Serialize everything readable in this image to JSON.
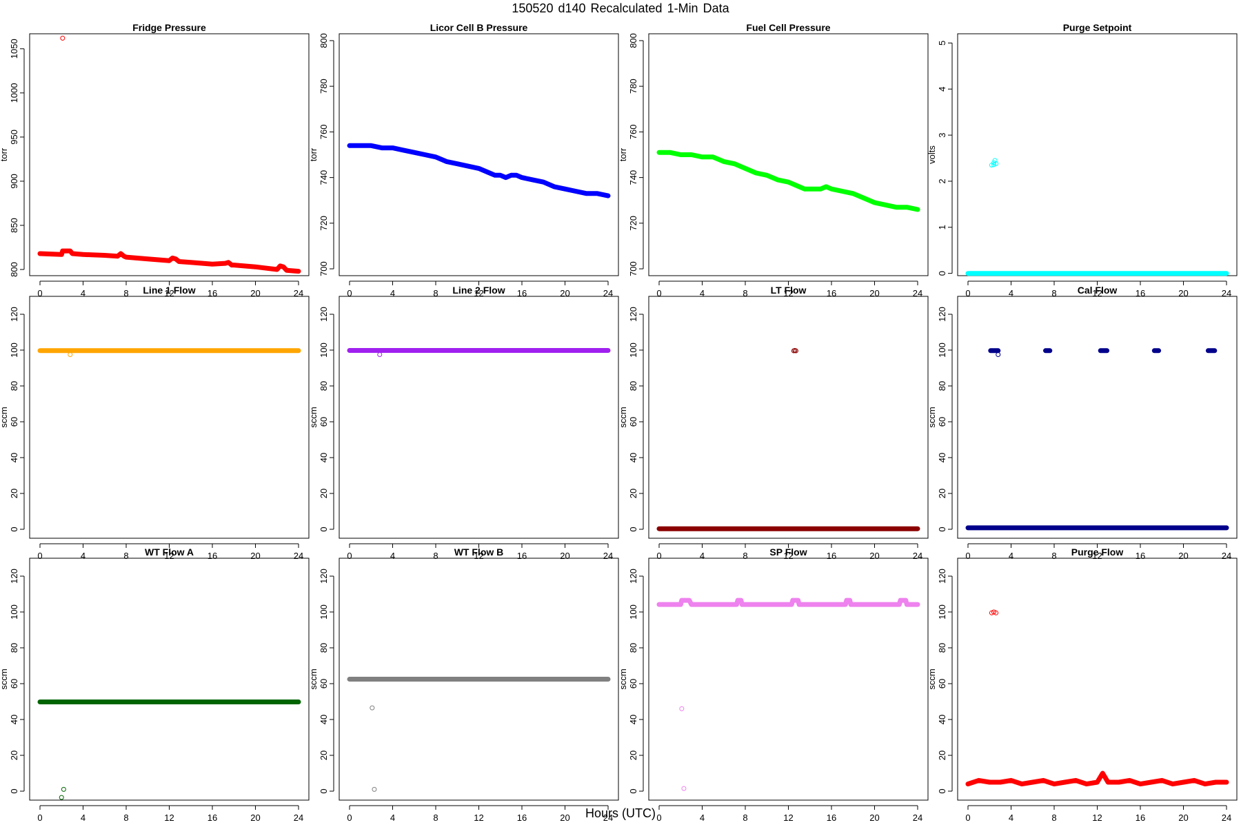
{
  "figure": {
    "title": "150520   d140   Recalculated 1-Min Data",
    "xlabel": "Hours (UTC)"
  },
  "chart_data": [
    {
      "type": "scatter",
      "title": "Fridge Pressure",
      "ylabel": "torr",
      "color": "#ff0000",
      "xlim": [
        -0.96,
        24.96
      ],
      "ylim": [
        793,
        1067
      ],
      "xticks": [
        0,
        4,
        8,
        12,
        16,
        20,
        24
      ],
      "yticks": [
        800,
        850,
        900,
        950,
        1000,
        1050
      ],
      "series": [
        {
          "x": [
            0,
            2,
            2.1,
            2.8,
            3,
            4,
            6,
            7.2,
            7.5,
            7.8,
            8,
            10,
            12,
            12.3,
            12.6,
            12.9,
            14,
            16,
            17.2,
            17.5,
            17.8,
            18,
            20,
            22,
            22.3,
            22.6,
            22.9,
            24
          ],
          "y": [
            818,
            817,
            821,
            821,
            818,
            817,
            816,
            815,
            818,
            815,
            814,
            812,
            810,
            813,
            812,
            809,
            808,
            806,
            807,
            808,
            805,
            805,
            803,
            800,
            804,
            803,
            799,
            798
          ]
        },
        {
          "x": [
            2.1
          ],
          "y": [
            1062
          ],
          "mode": "markers"
        }
      ]
    },
    {
      "type": "scatter",
      "title": "Licor Cell B Pressure",
      "ylabel": "torr",
      "color": "#0000ff",
      "xlim": [
        -0.96,
        24.96
      ],
      "ylim": [
        697,
        803
      ],
      "xticks": [
        0,
        4,
        8,
        12,
        16,
        20,
        24
      ],
      "yticks": [
        700,
        720,
        740,
        760,
        780,
        800
      ],
      "series": [
        {
          "x": [
            0,
            1,
            2,
            3,
            4,
            5,
            6,
            7,
            8,
            9,
            10,
            11,
            12,
            13,
            13.5,
            14,
            14.5,
            15,
            15.5,
            16,
            17,
            18,
            19,
            20,
            21,
            22,
            23,
            24
          ],
          "y": [
            754,
            754,
            754,
            753,
            753,
            752,
            751,
            750,
            749,
            747,
            746,
            745,
            744,
            742,
            741,
            741,
            740,
            741,
            741,
            740,
            739,
            738,
            736,
            735,
            734,
            733,
            733,
            732
          ]
        }
      ]
    },
    {
      "type": "scatter",
      "title": "Fuel Cell Pressure",
      "ylabel": "torr",
      "color": "#00ff00",
      "xlim": [
        -0.96,
        24.96
      ],
      "ylim": [
        697,
        803
      ],
      "xticks": [
        0,
        4,
        8,
        12,
        16,
        20,
        24
      ],
      "yticks": [
        700,
        720,
        740,
        760,
        780,
        800
      ],
      "series": [
        {
          "x": [
            0,
            1,
            2,
            3,
            4,
            5,
            6,
            7,
            8,
            9,
            10,
            11,
            12,
            13,
            13.5,
            14,
            14.5,
            15,
            15.5,
            16,
            17,
            18,
            19,
            20,
            21,
            22,
            23,
            24
          ],
          "y": [
            751,
            751,
            750,
            750,
            749,
            749,
            747,
            746,
            744,
            742,
            741,
            739,
            738,
            736,
            735,
            735,
            735,
            735,
            736,
            735,
            734,
            733,
            731,
            729,
            728,
            727,
            727,
            726
          ]
        }
      ]
    },
    {
      "type": "scatter",
      "title": "Purge Setpoint",
      "ylabel": "volts",
      "color": "#00ffff",
      "xlim": [
        -0.96,
        24.96
      ],
      "ylim": [
        -0.05,
        5.2
      ],
      "xticks": [
        0,
        4,
        8,
        12,
        16,
        20,
        24
      ],
      "yticks": [
        0,
        1,
        2,
        3,
        4,
        5
      ],
      "series": [
        {
          "x": [
            0,
            24
          ],
          "y": [
            0,
            0
          ]
        },
        {
          "x": [
            2.2,
            2.4,
            2.5,
            2.6,
            2.4
          ],
          "y": [
            2.35,
            2.4,
            2.45,
            2.38,
            2.36
          ],
          "mode": "markers"
        }
      ]
    },
    {
      "type": "scatter",
      "title": "Line 1 Flow",
      "ylabel": "sccm",
      "color": "#ffa500",
      "xlim": [
        -0.96,
        24.96
      ],
      "ylim": [
        -5,
        130
      ],
      "xticks": [
        0,
        4,
        8,
        12,
        16,
        20,
        24
      ],
      "yticks": [
        0,
        20,
        40,
        60,
        80,
        100,
        120
      ],
      "series": [
        {
          "x": [
            0,
            24
          ],
          "y": [
            99.7,
            99.7
          ]
        },
        {
          "x": [
            2.8
          ],
          "y": [
            97.5
          ],
          "mode": "markers"
        }
      ]
    },
    {
      "type": "scatter",
      "title": "Line 2 Flow",
      "ylabel": "sccm",
      "color": "#a020f0",
      "xlim": [
        -0.96,
        24.96
      ],
      "ylim": [
        -5,
        130
      ],
      "xticks": [
        0,
        4,
        8,
        12,
        16,
        20,
        24
      ],
      "yticks": [
        0,
        20,
        40,
        60,
        80,
        100,
        120
      ],
      "series": [
        {
          "x": [
            0,
            24
          ],
          "y": [
            99.8,
            99.8
          ]
        },
        {
          "x": [
            2.8
          ],
          "y": [
            97.5
          ],
          "mode": "markers"
        }
      ]
    },
    {
      "type": "scatter",
      "title": "LT Flow",
      "ylabel": "sccm",
      "color": "#8b0000",
      "xlim": [
        -0.96,
        24.96
      ],
      "ylim": [
        -5,
        130
      ],
      "xticks": [
        0,
        4,
        8,
        12,
        16,
        20,
        24
      ],
      "yticks": [
        0,
        20,
        40,
        60,
        80,
        100,
        120
      ],
      "series": [
        {
          "x": [
            0,
            24
          ],
          "y": [
            0.3,
            0.3
          ]
        },
        {
          "x": [
            12.5,
            12.6,
            12.7
          ],
          "y": [
            99.6,
            99.8,
            99.6
          ],
          "mode": "markers"
        }
      ]
    },
    {
      "type": "scatter",
      "title": "Cal Flow",
      "ylabel": "sccm",
      "color": "#00008b",
      "xlim": [
        -0.96,
        24.96
      ],
      "ylim": [
        -5,
        130
      ],
      "xticks": [
        0,
        4,
        8,
        12,
        16,
        20,
        24
      ],
      "yticks": [
        0,
        20,
        40,
        60,
        80,
        100,
        120
      ],
      "series": [
        {
          "x": [
            0,
            24
          ],
          "y": [
            0.8,
            0.8
          ]
        },
        {
          "x": [
            2.1,
            2.8
          ],
          "y": [
            99.7,
            99.7
          ]
        },
        {
          "x": [
            7.2,
            7.6
          ],
          "y": [
            99.7,
            99.7
          ]
        },
        {
          "x": [
            12.3,
            12.9
          ],
          "y": [
            99.7,
            99.7
          ]
        },
        {
          "x": [
            17.3,
            17.7
          ],
          "y": [
            99.7,
            99.7
          ]
        },
        {
          "x": [
            22.3,
            22.9
          ],
          "y": [
            99.7,
            99.7
          ]
        },
        {
          "x": [
            2.8
          ],
          "y": [
            97.5
          ],
          "mode": "markers"
        }
      ]
    },
    {
      "type": "scatter",
      "title": "WT Flow A",
      "ylabel": "sccm",
      "color": "#006400",
      "xlim": [
        -0.96,
        24.96
      ],
      "ylim": [
        -5,
        130
      ],
      "xticks": [
        0,
        4,
        8,
        12,
        16,
        20,
        24
      ],
      "yticks": [
        0,
        20,
        40,
        60,
        80,
        100,
        120
      ],
      "series": [
        {
          "x": [
            0,
            24
          ],
          "y": [
            49.8,
            49.8
          ]
        },
        {
          "x": [
            2.2,
            2.0
          ],
          "y": [
            1,
            -3.5
          ],
          "mode": "markers"
        }
      ]
    },
    {
      "type": "scatter",
      "title": "WT Flow B",
      "ylabel": "sccm",
      "color": "#808080",
      "xlim": [
        -0.96,
        24.96
      ],
      "ylim": [
        -5,
        130
      ],
      "xticks": [
        0,
        4,
        8,
        12,
        16,
        20,
        24
      ],
      "yticks": [
        0,
        20,
        40,
        60,
        80,
        100,
        120
      ],
      "series": [
        {
          "x": [
            0,
            24
          ],
          "y": [
            62.5,
            62.5
          ]
        },
        {
          "x": [
            2.1,
            2.3
          ],
          "y": [
            46.5,
            1
          ],
          "mode": "markers"
        }
      ]
    },
    {
      "type": "scatter",
      "title": "SP Flow",
      "ylabel": "sccm",
      "color": "#ee82ee",
      "xlim": [
        -0.96,
        24.96
      ],
      "ylim": [
        -5,
        130
      ],
      "xticks": [
        0,
        4,
        8,
        12,
        16,
        20,
        24
      ],
      "yticks": [
        0,
        20,
        40,
        60,
        80,
        100,
        120
      ],
      "series": [
        {
          "x": [
            0,
            2,
            2.1,
            2.8,
            3,
            7.2,
            7.3,
            7.6,
            7.7,
            12.3,
            12.4,
            12.9,
            13,
            17.3,
            17.4,
            17.7,
            17.8,
            22.3,
            22.4,
            22.9,
            23,
            24
          ],
          "y": [
            104.2,
            104.2,
            106.5,
            106.5,
            104.2,
            104.2,
            106.5,
            106.5,
            104.2,
            104.2,
            106.5,
            106.5,
            104.2,
            104.2,
            106.5,
            106.5,
            104.2,
            104.2,
            106.5,
            106.5,
            104.2,
            104.2
          ]
        },
        {
          "x": [
            2.1,
            2.3
          ],
          "y": [
            46,
            1.5
          ],
          "mode": "markers"
        }
      ]
    },
    {
      "type": "scatter",
      "title": "Purge Flow",
      "ylabel": "sccm",
      "color": "#ff0000",
      "xlim": [
        -0.96,
        24.96
      ],
      "ylim": [
        -5,
        130
      ],
      "xticks": [
        0,
        4,
        8,
        12,
        16,
        20,
        24
      ],
      "yticks": [
        0,
        20,
        40,
        60,
        80,
        100,
        120
      ],
      "series": [
        {
          "x": [
            0,
            1,
            2,
            3,
            4,
            5,
            6,
            7,
            8,
            9,
            10,
            11,
            12,
            12.5,
            13,
            14,
            15,
            16,
            17,
            18,
            19,
            20,
            21,
            22,
            23,
            24
          ],
          "y": [
            4,
            6,
            5,
            5,
            6,
            4,
            5,
            6,
            4,
            5,
            6,
            4,
            5,
            10,
            5,
            5,
            6,
            4,
            5,
            6,
            4,
            5,
            6,
            4,
            5,
            5
          ]
        },
        {
          "x": [
            2.2,
            2.4,
            2.6
          ],
          "y": [
            99.5,
            100,
            99.5
          ],
          "mode": "markers"
        }
      ]
    }
  ]
}
